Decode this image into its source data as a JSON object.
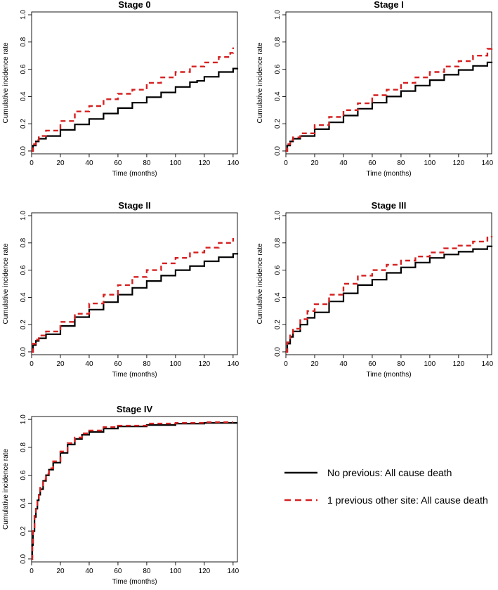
{
  "chart_data": [
    {
      "type": "line",
      "title": "Stage 0",
      "xlabel": "Time (months)",
      "ylabel": "Cumulative incidence rate",
      "xlim": [
        0,
        143
      ],
      "ylim": [
        0,
        1.0
      ],
      "x_ticks": [
        "0",
        "20",
        "40",
        "60",
        "80",
        "100",
        "120",
        "140"
      ],
      "y_ticks": [
        "0.0",
        "0.2",
        "0.4",
        "0.6",
        "0.8",
        "1.0"
      ],
      "series": [
        {
          "name": "No previous: All cause death",
          "x": [
            0,
            1,
            3,
            5,
            10,
            20,
            30,
            40,
            50,
            60,
            70,
            80,
            90,
            100,
            110,
            115,
            120,
            130,
            140,
            143
          ],
          "y": [
            0,
            0.04,
            0.07,
            0.09,
            0.11,
            0.155,
            0.195,
            0.235,
            0.275,
            0.315,
            0.355,
            0.395,
            0.43,
            0.47,
            0.505,
            0.515,
            0.545,
            0.58,
            0.605,
            0.61
          ]
        },
        {
          "name": "1 previous other site: All cause death",
          "x": [
            0,
            1,
            3,
            5,
            10,
            20,
            30,
            40,
            50,
            60,
            70,
            80,
            90,
            100,
            110,
            120,
            130,
            138,
            140
          ],
          "y": [
            0,
            0.05,
            0.08,
            0.11,
            0.15,
            0.22,
            0.29,
            0.33,
            0.38,
            0.42,
            0.45,
            0.5,
            0.54,
            0.58,
            0.62,
            0.65,
            0.69,
            0.72,
            0.76
          ]
        }
      ]
    },
    {
      "type": "line",
      "title": "Stage I",
      "xlabel": "Time (months)",
      "ylabel": "Cumulative incidence rate",
      "xlim": [
        0,
        143
      ],
      "ylim": [
        0,
        1.0
      ],
      "x_ticks": [
        "0",
        "20",
        "40",
        "60",
        "80",
        "100",
        "120",
        "140"
      ],
      "y_ticks": [
        "0.0",
        "0.2",
        "0.4",
        "0.6",
        "0.8",
        "1.0"
      ],
      "series": [
        {
          "name": "No previous: All cause death",
          "x": [
            0,
            1,
            3,
            5,
            10,
            20,
            30,
            40,
            50,
            60,
            70,
            80,
            90,
            100,
            110,
            120,
            130,
            140,
            143
          ],
          "y": [
            0,
            0.04,
            0.07,
            0.09,
            0.11,
            0.16,
            0.21,
            0.26,
            0.31,
            0.355,
            0.4,
            0.44,
            0.48,
            0.52,
            0.56,
            0.595,
            0.625,
            0.65,
            0.655
          ]
        },
        {
          "name": "1 previous other site: All cause death",
          "x": [
            0,
            1,
            3,
            5,
            10,
            20,
            30,
            40,
            50,
            60,
            70,
            80,
            90,
            100,
            110,
            120,
            130,
            140,
            143
          ],
          "y": [
            0,
            0.05,
            0.08,
            0.1,
            0.13,
            0.19,
            0.25,
            0.3,
            0.35,
            0.41,
            0.45,
            0.5,
            0.54,
            0.58,
            0.62,
            0.66,
            0.7,
            0.75,
            0.78
          ]
        }
      ]
    },
    {
      "type": "line",
      "title": "Stage II",
      "xlabel": "Time (months)",
      "ylabel": "Cumulative incidence rate",
      "xlim": [
        0,
        143
      ],
      "ylim": [
        0,
        1.0
      ],
      "x_ticks": [
        "0",
        "20",
        "40",
        "60",
        "80",
        "100",
        "120",
        "140"
      ],
      "y_ticks": [
        "0.0",
        "0.2",
        "0.4",
        "0.6",
        "0.8",
        "1.0"
      ],
      "series": [
        {
          "name": "No previous: All cause death",
          "x": [
            0,
            1,
            3,
            5,
            10,
            20,
            30,
            40,
            50,
            60,
            70,
            80,
            90,
            100,
            110,
            120,
            130,
            140,
            143
          ],
          "y": [
            0,
            0.05,
            0.08,
            0.1,
            0.13,
            0.19,
            0.255,
            0.31,
            0.365,
            0.42,
            0.47,
            0.52,
            0.56,
            0.6,
            0.63,
            0.665,
            0.695,
            0.72,
            0.725
          ]
        },
        {
          "name": "1 previous other site: All cause death",
          "x": [
            0,
            1,
            3,
            5,
            10,
            20,
            30,
            40,
            50,
            60,
            70,
            80,
            90,
            100,
            110,
            120,
            130,
            140
          ],
          "y": [
            0,
            0.06,
            0.09,
            0.12,
            0.15,
            0.22,
            0.28,
            0.355,
            0.42,
            0.49,
            0.55,
            0.6,
            0.65,
            0.69,
            0.73,
            0.765,
            0.8,
            0.835
          ]
        }
      ]
    },
    {
      "type": "line",
      "title": "Stage III",
      "xlabel": "Time (months)",
      "ylabel": "Cumulative incidence rate",
      "xlim": [
        0,
        143
      ],
      "ylim": [
        0,
        1.0
      ],
      "x_ticks": [
        "0",
        "20",
        "40",
        "60",
        "80",
        "100",
        "120",
        "140"
      ],
      "y_ticks": [
        "0.0",
        "0.2",
        "0.4",
        "0.6",
        "0.8",
        "1.0"
      ],
      "series": [
        {
          "name": "No previous: All cause death",
          "x": [
            0,
            1,
            3,
            5,
            10,
            15,
            20,
            30,
            40,
            50,
            60,
            70,
            80,
            90,
            100,
            110,
            120,
            130,
            140,
            143
          ],
          "y": [
            0,
            0.06,
            0.11,
            0.15,
            0.2,
            0.25,
            0.29,
            0.37,
            0.43,
            0.49,
            0.53,
            0.58,
            0.62,
            0.655,
            0.69,
            0.715,
            0.735,
            0.755,
            0.775,
            0.78
          ]
        },
        {
          "name": "1 previous other site: All cause death",
          "x": [
            0,
            1,
            3,
            5,
            10,
            15,
            20,
            30,
            40,
            50,
            60,
            70,
            80,
            90,
            100,
            110,
            120,
            130,
            140,
            143
          ],
          "y": [
            0,
            0.07,
            0.12,
            0.17,
            0.24,
            0.3,
            0.35,
            0.42,
            0.5,
            0.56,
            0.6,
            0.64,
            0.67,
            0.7,
            0.73,
            0.76,
            0.78,
            0.81,
            0.84,
            0.85
          ]
        }
      ]
    },
    {
      "type": "line",
      "title": "Stage IV",
      "xlabel": "Time (months)",
      "ylabel": "Cumulative incidence rate",
      "xlim": [
        0,
        143
      ],
      "ylim": [
        0,
        1.0
      ],
      "x_ticks": [
        "0",
        "20",
        "40",
        "60",
        "80",
        "100",
        "120",
        "140"
      ],
      "y_ticks": [
        "0.0",
        "0.2",
        "0.4",
        "0.6",
        "0.8",
        "1.0"
      ],
      "series": [
        {
          "name": "No previous: All cause death",
          "x": [
            0,
            0.5,
            1,
            2,
            3,
            4,
            5,
            6,
            8,
            10,
            12,
            15,
            20,
            25,
            30,
            35,
            40,
            50,
            60,
            80,
            100,
            120,
            143
          ],
          "y": [
            0,
            0.1,
            0.2,
            0.3,
            0.36,
            0.42,
            0.46,
            0.5,
            0.56,
            0.6,
            0.64,
            0.69,
            0.76,
            0.82,
            0.86,
            0.89,
            0.91,
            0.935,
            0.95,
            0.96,
            0.97,
            0.975,
            0.975
          ]
        },
        {
          "name": "1 previous other site: All cause death",
          "x": [
            0,
            0.5,
            1,
            2,
            3,
            4,
            5,
            6,
            8,
            10,
            12,
            15,
            20,
            25,
            30,
            35,
            40,
            50,
            60,
            80,
            100,
            120,
            140
          ],
          "y": [
            0,
            0.1,
            0.22,
            0.31,
            0.37,
            0.43,
            0.47,
            0.51,
            0.57,
            0.61,
            0.65,
            0.7,
            0.77,
            0.83,
            0.87,
            0.9,
            0.92,
            0.945,
            0.955,
            0.97,
            0.975,
            0.98,
            0.98
          ]
        }
      ]
    }
  ],
  "legend": {
    "position": "bottom-right",
    "items": [
      {
        "label": "No previous: All cause death",
        "color": "#000000",
        "style": "solid"
      },
      {
        "label": "1 previous other site: All cause death",
        "color": "#d62020",
        "style": "dashed"
      }
    ]
  },
  "colors": {
    "no_previous": "#000000",
    "previous_other": "#d62020"
  }
}
